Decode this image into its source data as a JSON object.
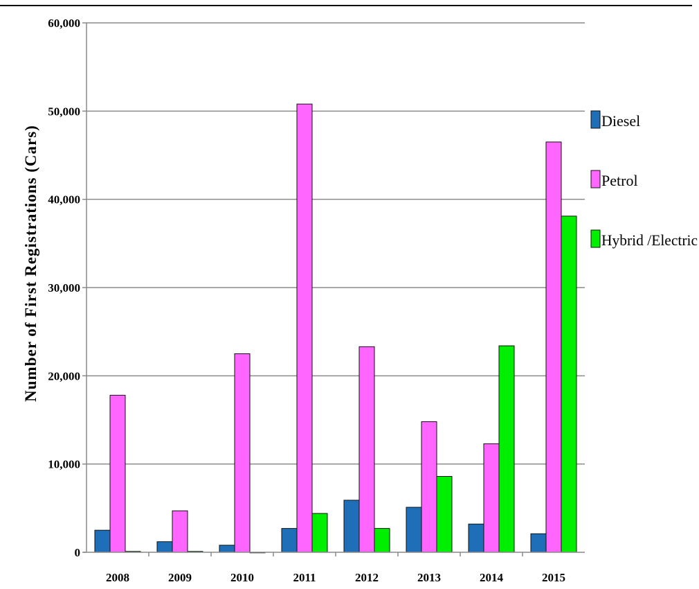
{
  "chart_data": {
    "type": "bar",
    "title": "",
    "xlabel": "",
    "ylabel": "Number of First Registrations (Cars)",
    "categories": [
      "2008",
      "2009",
      "2010",
      "2011",
      "2012",
      "2013",
      "2014",
      "2015"
    ],
    "ylim": [
      0,
      60000
    ],
    "yticks": [
      0,
      10000,
      20000,
      30000,
      40000,
      50000,
      60000
    ],
    "ytick_labels": [
      "0",
      "10,000",
      "20,000",
      "30,000",
      "40,000",
      "50,000",
      "60,000"
    ],
    "grid": true,
    "legend_position": "right",
    "series": [
      {
        "name": "Diesel",
        "color": "#1f6fb8",
        "values": [
          2500,
          1200,
          800,
          2700,
          5900,
          5100,
          3200,
          2100
        ]
      },
      {
        "name": "Petrol",
        "color": "#ff66ff",
        "values": [
          17800,
          4700,
          22500,
          50800,
          23300,
          14800,
          12300,
          46500
        ]
      },
      {
        "name": "Hybrid /Electric",
        "color": "#00ee00",
        "values": [
          100,
          100,
          0,
          4400,
          2700,
          8600,
          23400,
          38100
        ]
      }
    ]
  }
}
